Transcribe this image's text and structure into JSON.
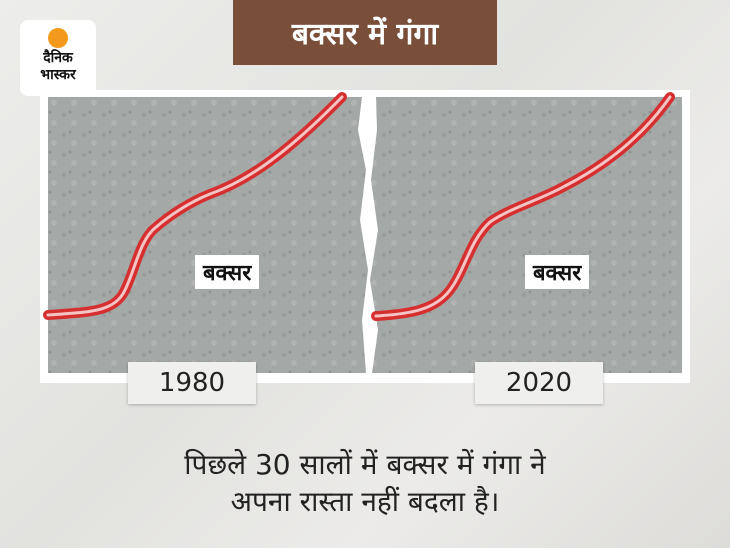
{
  "logo": {
    "line1": "दैनिक",
    "line2": "भास्कर"
  },
  "title": "बक्सर में गंगा",
  "panels": [
    {
      "place": "बक्सर",
      "year": "1980"
    },
    {
      "place": "बक्सर",
      "year": "2020"
    }
  ],
  "caption": {
    "line1": "पिछले 30 सालों में बक्सर में गंगा ने",
    "line2": "अपना रास्ता नहीं बदला है।"
  }
}
